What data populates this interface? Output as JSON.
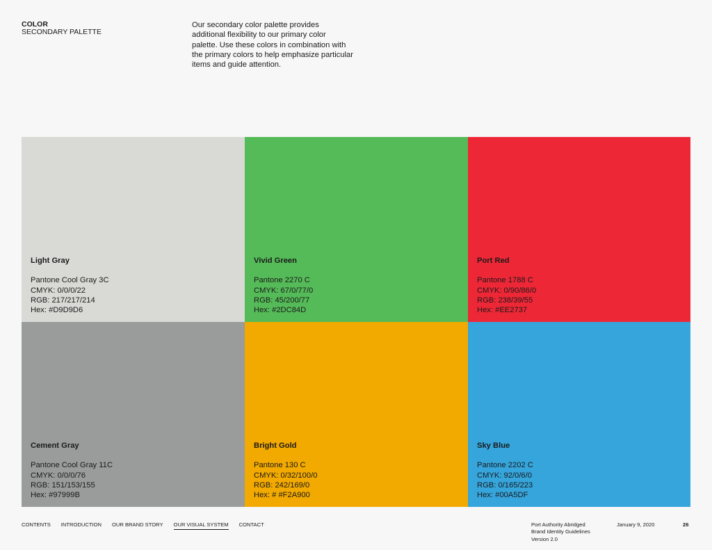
{
  "header": {
    "section_title": "COLOR",
    "section_subtitle": "SECONDARY PALETTE",
    "intro_text": "Our secondary color palette provides additional flexibility to our primary color palette. Use these colors in combination with the primary colors to help emphasize particular items and guide attention."
  },
  "swatches": [
    {
      "name": "Light Gray",
      "pantone": "Pantone Cool Gray 3C",
      "cmyk": "CMYK: 0/0/0/22",
      "rgb": "RGB: 217/217/214",
      "hex": "Hex: #D9D9D6",
      "color": "#D9D9D6"
    },
    {
      "name": "Vivid Green",
      "pantone": "Pantone 2270 C",
      "cmyk": "CMYK: 67/0/77/0",
      "rgb": "RGB: 45/200/77",
      "hex": "Hex: #2DC84D",
      "color": "#55BB58"
    },
    {
      "name": "Port Red",
      "pantone": "Pantone 1788 C",
      "cmyk": "CMYK: 0/90/86/0",
      "rgb": "RGB: 238/39/55",
      "hex": "Hex: #EE2737",
      "color": "#EE2737"
    },
    {
      "name": "Cement Gray",
      "pantone": "Pantone Cool Gray 11C",
      "cmyk": "CMYK: 0/0/0/76",
      "rgb": "RGB: 151/153/155",
      "hex": "Hex: #97999B",
      "color": "#999C9B"
    },
    {
      "name": "Bright Gold",
      "pantone": "Pantone 130 C",
      "cmyk": "CMYK: 0/32/100/0",
      "rgb": "RGB: 242/169/0",
      "hex": "Hex: # #F2A900",
      "color": "#F2A900"
    },
    {
      "name": "Sky Blue",
      "pantone": "Pantone 2202 C",
      "cmyk": "CMYK: 92/0/6/0",
      "rgb": "RGB: 0/165/223",
      "hex": "Hex: #00A5DF",
      "color": "#35A5DC"
    }
  ],
  "footer": {
    "nav": [
      "CONTENTS",
      "INTRODUCTION",
      "OUR BRAND STORY",
      "OUR VISUAL SYSTEM",
      "CONTACT"
    ],
    "active_nav": "OUR VISUAL SYSTEM",
    "doc_title_1": "Port Authority Abridged",
    "doc_title_2": "Brand Identity Guidelines",
    "doc_version": "Version 2.0",
    "date": "January 9, 2020",
    "page": "26"
  }
}
